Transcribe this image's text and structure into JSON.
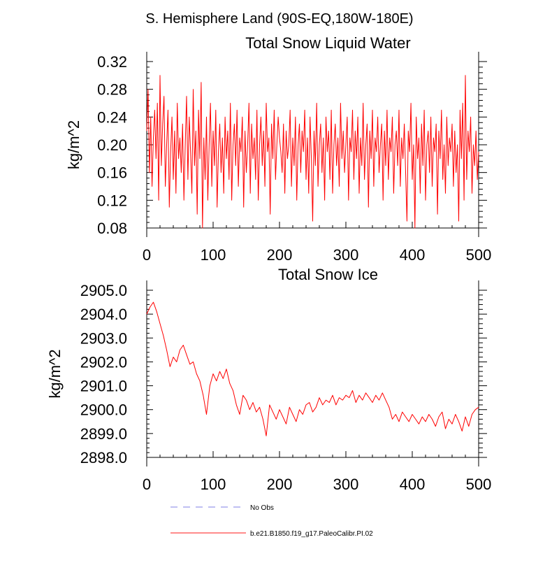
{
  "page": {
    "title": "S. Hemisphere Land (90S-EQ,180W-180E)"
  },
  "legend": {
    "position": "bottom",
    "items": [
      {
        "label": "No Obs",
        "color": "#aaaaee",
        "style": "dashed"
      },
      {
        "label": "b.e21.B1850.f19_g17.PaleoCalibr.PI.02",
        "color": "#ff6666",
        "style": "solid"
      }
    ]
  },
  "chart_data": [
    {
      "type": "line",
      "title": "Total Snow Liquid Water",
      "xlabel": "",
      "ylabel": "kg/m^2",
      "xlim": [
        0,
        500
      ],
      "ylim": [
        0.08,
        0.32
      ],
      "xticks": [
        "0",
        "100",
        "200",
        "300",
        "400",
        "500"
      ],
      "yticks": [
        "0.08",
        "0.12",
        "0.16",
        "0.20",
        "0.24",
        "0.28",
        "0.32"
      ],
      "series": [
        {
          "name": "b.e21.B1850.f19_g17.PaleoCalibr.PI.02",
          "color": "#ff0000",
          "x": [
            0,
            2,
            4,
            6,
            8,
            10,
            12,
            14,
            16,
            18,
            20,
            22,
            24,
            26,
            28,
            30,
            32,
            34,
            36,
            38,
            40,
            42,
            44,
            46,
            48,
            50,
            52,
            54,
            56,
            58,
            60,
            62,
            64,
            66,
            68,
            70,
            72,
            74,
            76,
            78,
            80,
            82,
            84,
            86,
            88,
            90,
            92,
            94,
            96,
            98,
            100,
            102,
            104,
            106,
            108,
            110,
            112,
            114,
            116,
            118,
            120,
            122,
            124,
            126,
            128,
            130,
            132,
            134,
            136,
            138,
            140,
            142,
            144,
            146,
            148,
            150,
            152,
            154,
            156,
            158,
            160,
            162,
            164,
            166,
            168,
            170,
            172,
            174,
            176,
            178,
            180,
            182,
            184,
            186,
            188,
            190,
            192,
            194,
            196,
            198,
            200,
            202,
            204,
            206,
            208,
            210,
            212,
            214,
            216,
            218,
            220,
            222,
            224,
            226,
            228,
            230,
            232,
            234,
            236,
            238,
            240,
            242,
            244,
            246,
            248,
            250,
            252,
            254,
            256,
            258,
            260,
            262,
            264,
            266,
            268,
            270,
            272,
            274,
            276,
            278,
            280,
            282,
            284,
            286,
            288,
            290,
            292,
            294,
            296,
            298,
            300,
            302,
            304,
            306,
            308,
            310,
            312,
            314,
            316,
            318,
            320,
            322,
            324,
            326,
            328,
            330,
            332,
            334,
            336,
            338,
            340,
            342,
            344,
            346,
            348,
            350,
            352,
            354,
            356,
            358,
            360,
            362,
            364,
            366,
            368,
            370,
            372,
            374,
            376,
            378,
            380,
            382,
            384,
            386,
            388,
            390,
            392,
            394,
            396,
            398,
            400,
            402,
            404,
            406,
            408,
            410,
            412,
            414,
            416,
            418,
            420,
            422,
            424,
            426,
            428,
            430,
            432,
            434,
            436,
            438,
            440,
            442,
            444,
            446,
            448,
            450,
            452,
            454,
            456,
            458,
            460,
            462,
            464,
            466,
            468,
            470,
            472,
            474,
            476,
            478,
            480,
            482,
            484,
            486,
            488,
            490,
            492,
            494,
            496,
            498,
            500
          ],
          "values": [
            0.22,
            0.28,
            0.16,
            0.24,
            0.14,
            0.21,
            0.25,
            0.18,
            0.26,
            0.12,
            0.3,
            0.17,
            0.23,
            0.27,
            0.14,
            0.2,
            0.25,
            0.11,
            0.19,
            0.24,
            0.15,
            0.22,
            0.13,
            0.26,
            0.18,
            0.21,
            0.16,
            0.23,
            0.12,
            0.2,
            0.27,
            0.15,
            0.24,
            0.19,
            0.13,
            0.28,
            0.17,
            0.22,
            0.1,
            0.25,
            0.18,
            0.29,
            0.08,
            0.21,
            0.15,
            0.24,
            0.12,
            0.2,
            0.26,
            0.14,
            0.22,
            0.17,
            0.25,
            0.11,
            0.19,
            0.23,
            0.16,
            0.21,
            0.13,
            0.24,
            0.18,
            0.22,
            0.15,
            0.26,
            0.12,
            0.2,
            0.23,
            0.17,
            0.25,
            0.14,
            0.21,
            0.19,
            0.24,
            0.11,
            0.22,
            0.16,
            0.2,
            0.26,
            0.13,
            0.23,
            0.18,
            0.21,
            0.15,
            0.25,
            0.12,
            0.2,
            0.24,
            0.17,
            0.22,
            0.14,
            0.26,
            0.19,
            0.21,
            0.1,
            0.23,
            0.18,
            0.25,
            0.15,
            0.2,
            0.24,
            0.21,
            0.19,
            0.16,
            0.23,
            0.13,
            0.22,
            0.18,
            0.2,
            0.25,
            0.14,
            0.21,
            0.17,
            0.24,
            0.12,
            0.2,
            0.23,
            0.16,
            0.22,
            0.19,
            0.25,
            0.15,
            0.21,
            0.13,
            0.24,
            0.18,
            0.09,
            0.22,
            0.17,
            0.26,
            0.14,
            0.2,
            0.23,
            0.16,
            0.21,
            0.12,
            0.24,
            0.19,
            0.22,
            0.15,
            0.25,
            0.13,
            0.2,
            0.23,
            0.17,
            0.21,
            0.14,
            0.26,
            0.18,
            0.22,
            0.16,
            0.2,
            0.24,
            0.12,
            0.21,
            0.19,
            0.25,
            0.15,
            0.22,
            0.18,
            0.24,
            0.13,
            0.21,
            0.17,
            0.26,
            0.15,
            0.2,
            0.23,
            0.11,
            0.22,
            0.18,
            0.25,
            0.14,
            0.21,
            0.19,
            0.24,
            0.16,
            0.2,
            0.23,
            0.12,
            0.22,
            0.17,
            0.25,
            0.15,
            0.21,
            0.19,
            0.24,
            0.13,
            0.2,
            0.22,
            0.17,
            0.25,
            0.14,
            0.21,
            0.18,
            0.23,
            0.16,
            0.09,
            0.22,
            0.19,
            0.26,
            0.15,
            0.2,
            0.08,
            0.24,
            0.18,
            0.21,
            0.13,
            0.23,
            0.17,
            0.25,
            0.12,
            0.2,
            0.22,
            0.16,
            0.24,
            0.14,
            0.21,
            0.19,
            0.23,
            0.1,
            0.22,
            0.18,
            0.25,
            0.15,
            0.2,
            0.13,
            0.24,
            0.17,
            0.21,
            0.19,
            0.23,
            0.14,
            0.22,
            0.16,
            0.2,
            0.09,
            0.25,
            0.18,
            0.26,
            0.12,
            0.3,
            0.15,
            0.22,
            0.19,
            0.24,
            0.13,
            0.2,
            0.17,
            0.22,
            0.15,
            0.19
          ]
        }
      ]
    },
    {
      "type": "line",
      "title": "Total Snow Ice",
      "xlabel": "",
      "ylabel": "kg/m^2",
      "xlim": [
        0,
        500
      ],
      "ylim": [
        2898.0,
        2905.0
      ],
      "xticks": [
        "0",
        "100",
        "200",
        "300",
        "400",
        "500"
      ],
      "yticks": [
        "2898.0",
        "2899.0",
        "2900.0",
        "2901.0",
        "2902.0",
        "2903.0",
        "2904.0",
        "2905.0"
      ],
      "series": [
        {
          "name": "b.e21.B1850.f19_g17.PaleoCalibr.PI.02",
          "color": "#ff0000",
          "x": [
            0,
            5,
            10,
            15,
            20,
            25,
            30,
            35,
            40,
            45,
            50,
            55,
            60,
            65,
            70,
            75,
            80,
            85,
            90,
            95,
            100,
            105,
            110,
            115,
            120,
            125,
            130,
            135,
            140,
            145,
            150,
            155,
            160,
            165,
            170,
            175,
            180,
            185,
            190,
            195,
            200,
            205,
            210,
            215,
            220,
            225,
            230,
            235,
            240,
            245,
            250,
            255,
            260,
            265,
            270,
            275,
            280,
            285,
            290,
            295,
            300,
            305,
            310,
            315,
            320,
            325,
            330,
            335,
            340,
            345,
            350,
            355,
            360,
            365,
            370,
            375,
            380,
            385,
            390,
            395,
            400,
            405,
            410,
            415,
            420,
            425,
            430,
            435,
            440,
            445,
            450,
            455,
            460,
            465,
            470,
            475,
            480,
            485,
            490,
            495,
            500
          ],
          "values": [
            2904.0,
            2904.3,
            2904.5,
            2904.1,
            2903.6,
            2903.1,
            2902.5,
            2901.8,
            2902.2,
            2902.0,
            2902.5,
            2902.7,
            2902.3,
            2901.9,
            2902.0,
            2901.5,
            2901.2,
            2900.6,
            2899.8,
            2901.0,
            2901.5,
            2901.2,
            2901.6,
            2901.3,
            2901.7,
            2901.1,
            2900.8,
            2900.2,
            2899.8,
            2900.6,
            2900.4,
            2900.0,
            2900.3,
            2899.9,
            2900.1,
            2899.6,
            2898.9,
            2900.2,
            2899.9,
            2899.6,
            2900.0,
            2899.7,
            2899.4,
            2900.1,
            2899.8,
            2899.5,
            2900.0,
            2899.8,
            2900.2,
            2900.3,
            2899.9,
            2900.1,
            2900.5,
            2900.2,
            2900.4,
            2900.3,
            2900.6,
            2900.2,
            2900.5,
            2900.4,
            2900.6,
            2900.5,
            2900.8,
            2900.3,
            2900.6,
            2900.4,
            2900.7,
            2900.5,
            2900.3,
            2900.6,
            2900.4,
            2900.7,
            2900.4,
            2900.1,
            2899.6,
            2899.8,
            2899.5,
            2899.9,
            2899.7,
            2899.5,
            2899.8,
            2899.6,
            2899.4,
            2899.7,
            2899.5,
            2899.8,
            2899.6,
            2899.3,
            2899.7,
            2899.9,
            2899.2,
            2899.6,
            2899.4,
            2899.8,
            2899.5,
            2899.1,
            2899.7,
            2899.3,
            2899.8,
            2900.0,
            2900.1
          ]
        }
      ]
    }
  ]
}
